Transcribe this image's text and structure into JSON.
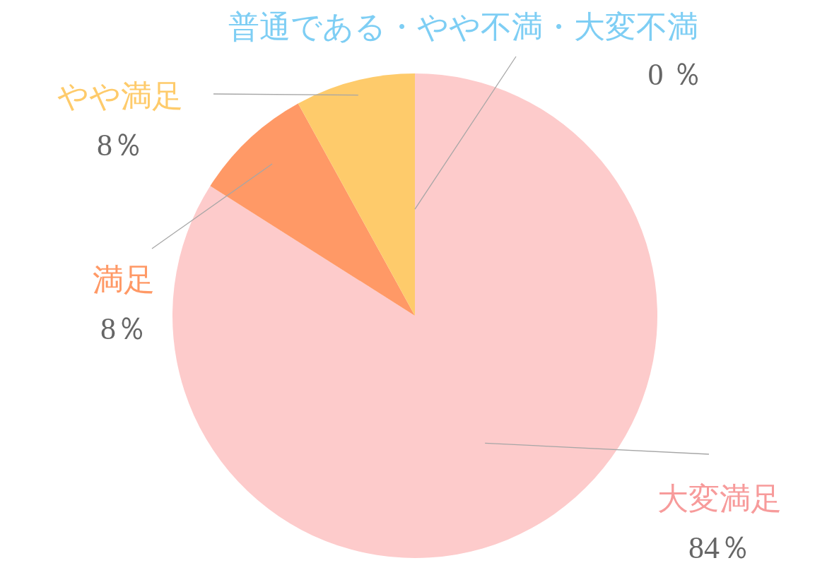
{
  "chart_data": {
    "type": "pie",
    "categories": [
      "大変満足",
      "満足",
      "やや満足",
      "普通である・やや不満・大変不満"
    ],
    "values": [
      84,
      8,
      8,
      0
    ],
    "colors": [
      "#fdcbcb",
      "#ff9966",
      "#fecb6b",
      "#7ecef4"
    ],
    "value_labels": [
      "84％",
      "8％",
      "8％",
      "0 ％"
    ],
    "legend": false
  }
}
